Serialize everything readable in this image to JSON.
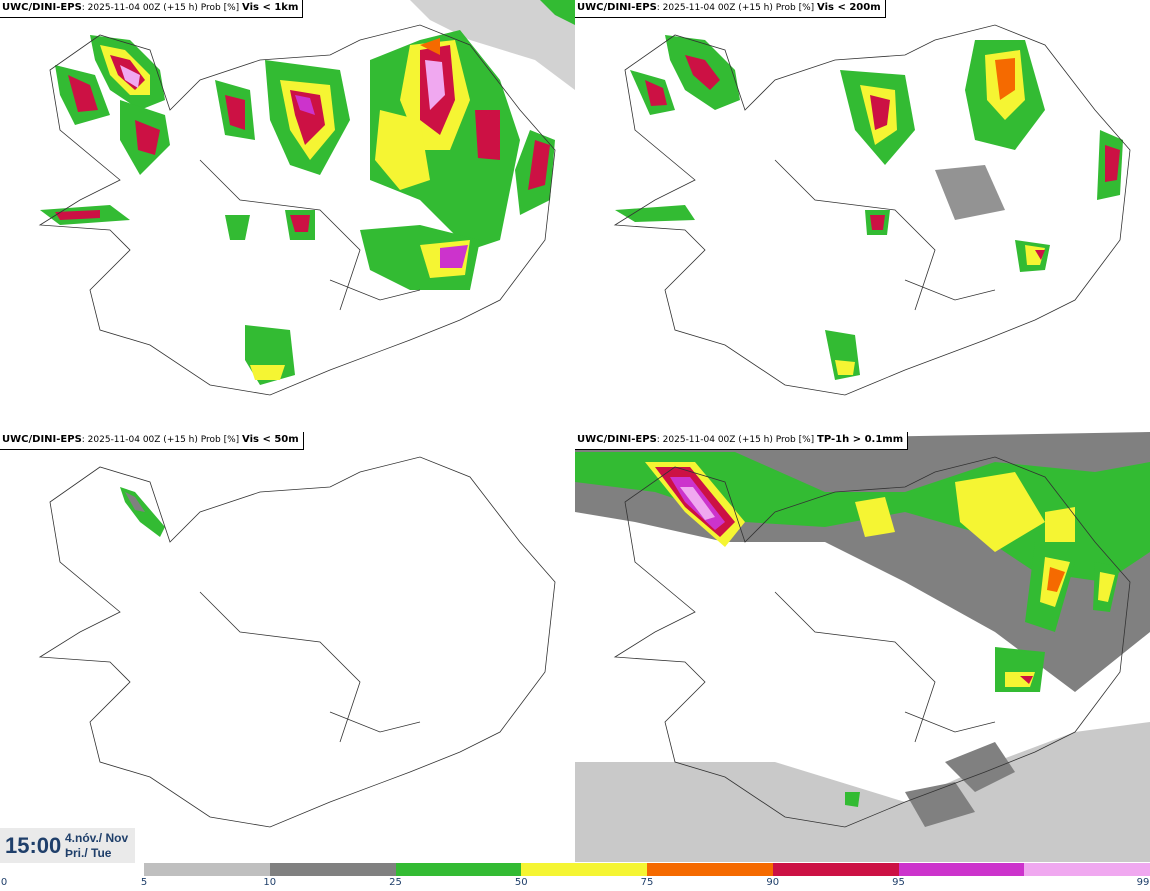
{
  "panels": [
    {
      "model": "UWC/DINI-EPS",
      "run": ": 2025-11-04 00Z (+15 h) Prob [%]",
      "variable": "Vis < 1km"
    },
    {
      "model": "UWC/DINI-EPS",
      "run": ": 2025-11-04 00Z (+15 h) Prob [%]",
      "variable": "Vis < 200m"
    },
    {
      "model": "UWC/DINI-EPS",
      "run": ": 2025-11-04 00Z (+15 h) Prob [%]",
      "variable": "Vis < 50m"
    },
    {
      "model": "UWC/DINI-EPS",
      "run": ": 2025-11-04 00Z (+15 h) Prob [%]",
      "variable": "TP-1h > 0.1mm"
    }
  ],
  "valid_time": {
    "clock": "15:00",
    "date_line1": "4.nóv./ Nov",
    "date_line2": "Þri./ Tue"
  },
  "legend": {
    "ticks": [
      "0",
      "5",
      "10",
      "25",
      "50",
      "75",
      "90",
      "95",
      "99"
    ],
    "colors": [
      "#bfbfbf",
      "#808080",
      "#33bb33",
      "#f5f533",
      "#f56a00",
      "#cc1144",
      "#cc33cc",
      "#f0a8f0"
    ]
  }
}
